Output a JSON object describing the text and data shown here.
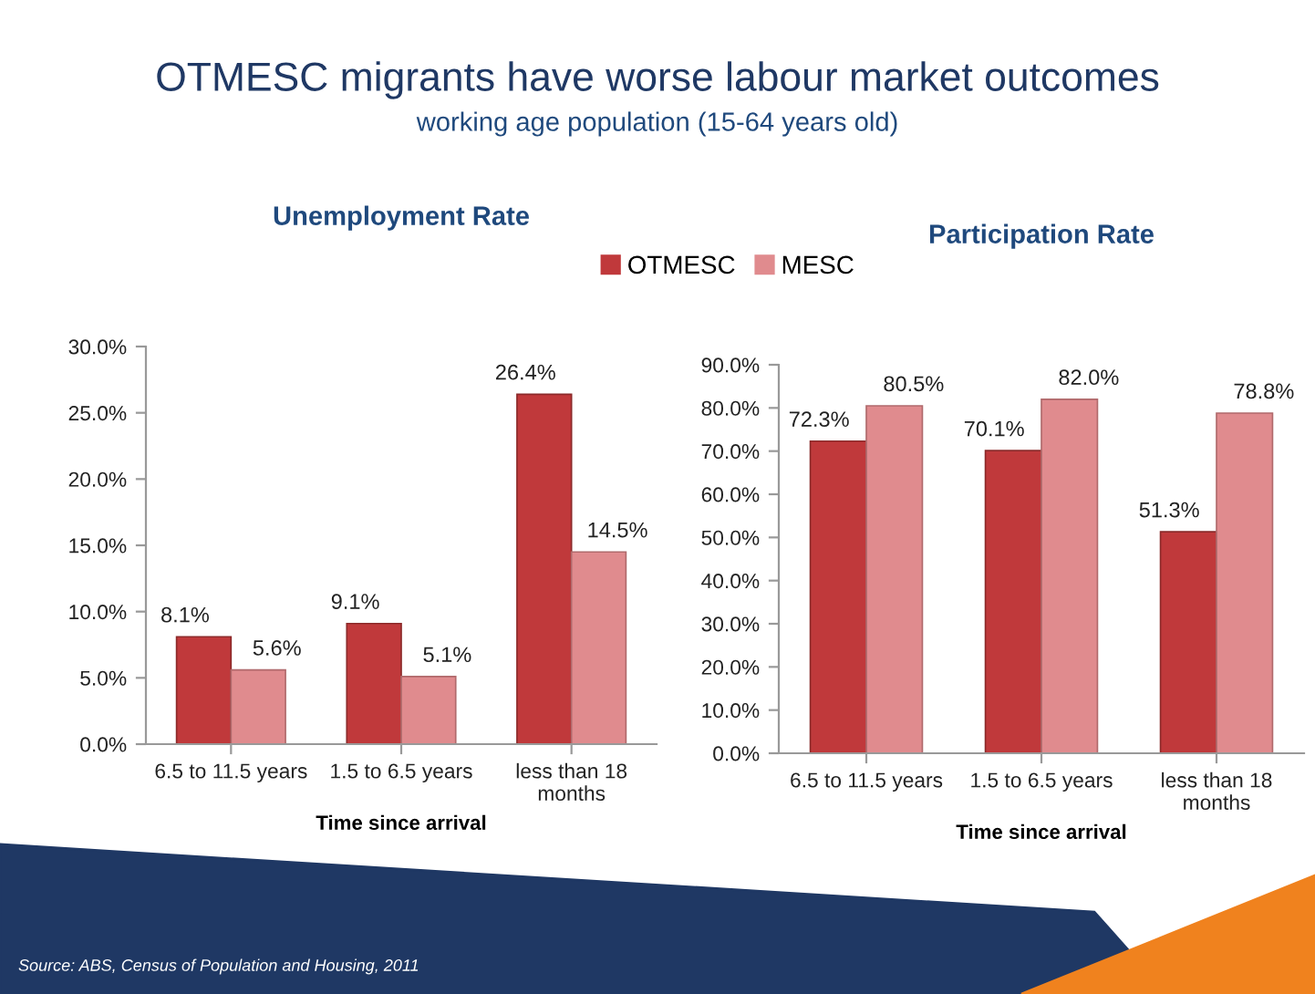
{
  "chart_data": [
    {
      "type": "bar",
      "title": "Unemployment Rate",
      "xlabel": "Time since arrival",
      "categories": [
        "6.5 to 11.5 years",
        "1.5 to 6.5 years",
        "less than 18 months"
      ],
      "series": [
        {
          "name": "OTMESC",
          "color": "#c0393b",
          "values": [
            8.1,
            9.1,
            26.4
          ],
          "value_labels": [
            "8.1%",
            "9.1%",
            "26.4%"
          ]
        },
        {
          "name": "MESC",
          "color": "#e08b8e",
          "values": [
            5.6,
            5.1,
            14.5
          ],
          "value_labels": [
            "5.6%",
            "5.1%",
            "14.5%"
          ]
        }
      ],
      "ylim": [
        0,
        30
      ],
      "yticks": [
        {
          "value": 0,
          "label": "0.0%"
        },
        {
          "value": 5,
          "label": "5.0%"
        },
        {
          "value": 10,
          "label": "10.0%"
        },
        {
          "value": 15,
          "label": "15.0%"
        },
        {
          "value": 20,
          "label": "20.0%"
        },
        {
          "value": 25,
          "label": "25.0%"
        },
        {
          "value": 30,
          "label": "30.0%"
        }
      ],
      "legend": "top right",
      "grid": false,
      "annotations": [
        "OTMESC migrants have worse labour market outcomes",
        "working age population (15-64 years old)",
        "Source: ABS, Census of Population and Housing, 2011"
      ]
    },
    {
      "type": "bar",
      "title": "Participation Rate",
      "xlabel": "Time since arrival",
      "categories": [
        "6.5 to 11.5 years",
        "1.5 to 6.5 years",
        "less than 18 months"
      ],
      "series": [
        {
          "color": "#c0393b",
          "values": [
            72.3,
            70.1,
            51.3
          ],
          "value_labels": [
            "72.3%",
            "70.1%",
            "51.3%"
          ]
        },
        {
          "color": "#e08b8e",
          "values": [
            80.5,
            82.0,
            78.8
          ],
          "value_labels": [
            "80.5%",
            "82.0%",
            "78.8%"
          ]
        }
      ],
      "ylim": [
        0,
        90
      ],
      "yticks": [
        {
          "value": 0,
          "label": "0.0%"
        },
        {
          "value": 10,
          "label": "10.0%"
        },
        {
          "value": 20,
          "label": "20.0%"
        },
        {
          "value": 30,
          "label": "30.0%"
        },
        {
          "value": 40,
          "label": "40.0%"
        },
        {
          "value": 50,
          "label": "50.0%"
        },
        {
          "value": 60,
          "label": "60.0%"
        },
        {
          "value": 70,
          "label": "70.0%"
        },
        {
          "value": 80,
          "label": "80.0%"
        },
        {
          "value": 90,
          "label": "90.0%"
        }
      ],
      "grid": false
    }
  ]
}
